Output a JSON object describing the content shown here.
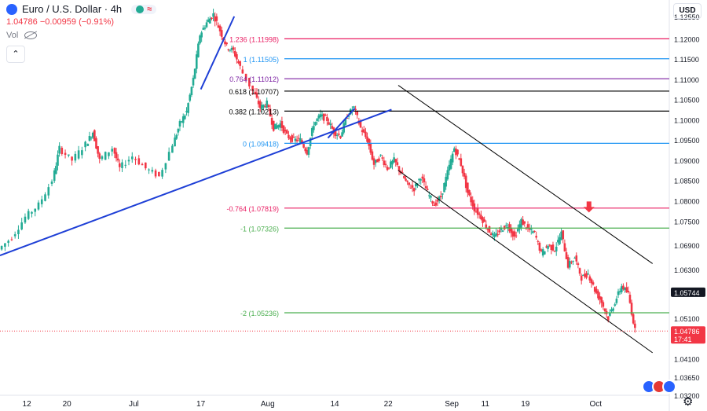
{
  "header": {
    "title": "Euro / U.S. Dollar · 4h",
    "open": "1.04786",
    "change": "−0.00959 (−0.91%)",
    "vol_label": "Vol"
  },
  "toolbar": {
    "currency": "USD",
    "collapse_symbol": "⌃"
  },
  "chart_data": {
    "type": "candlestick",
    "instrument": "EURUSD",
    "timeframe": "4h",
    "y_range": [
      1.032,
      1.128
    ],
    "y_ticks": [
      "1.12550",
      "1.12000",
      "1.11500",
      "1.11000",
      "1.10500",
      "1.10000",
      "1.09500",
      "1.09000",
      "1.08500",
      "1.08000",
      "1.07500",
      "1.06900",
      "1.06300",
      "1.05100",
      "1.04100",
      "1.03650",
      "1.03200"
    ],
    "y_tick_values": [
      1.1255,
      1.12,
      1.115,
      1.11,
      1.105,
      1.1,
      1.095,
      1.09,
      1.085,
      1.08,
      1.075,
      1.069,
      1.063,
      1.051,
      1.041,
      1.0365,
      1.032
    ],
    "x_ticks": [
      {
        "label": "12",
        "pos": 0.04
      },
      {
        "label": "20",
        "pos": 0.1
      },
      {
        "label": "Jul",
        "pos": 0.2
      },
      {
        "label": "17",
        "pos": 0.3
      },
      {
        "label": "Aug",
        "pos": 0.4
      },
      {
        "label": "14",
        "pos": 0.5
      },
      {
        "label": "22",
        "pos": 0.58
      },
      {
        "label": "Sep",
        "pos": 0.675
      },
      {
        "label": "11",
        "pos": 0.725
      },
      {
        "label": "19",
        "pos": 0.785
      },
      {
        "label": "Oct",
        "pos": 0.89
      }
    ],
    "path_points": [
      [
        0.0,
        1.068
      ],
      [
        0.02,
        1.071
      ],
      [
        0.04,
        1.076
      ],
      [
        0.06,
        1.079
      ],
      [
        0.08,
        1.085
      ],
      [
        0.09,
        1.093
      ],
      [
        0.11,
        1.09
      ],
      [
        0.13,
        1.094
      ],
      [
        0.14,
        1.097
      ],
      [
        0.15,
        1.09
      ],
      [
        0.17,
        1.093
      ],
      [
        0.18,
        1.088
      ],
      [
        0.2,
        1.091
      ],
      [
        0.22,
        1.088
      ],
      [
        0.24,
        1.086
      ],
      [
        0.26,
        1.094
      ],
      [
        0.27,
        1.099
      ],
      [
        0.28,
        1.102
      ],
      [
        0.29,
        1.11
      ],
      [
        0.3,
        1.121
      ],
      [
        0.31,
        1.124
      ],
      [
        0.32,
        1.126
      ],
      [
        0.33,
        1.122
      ],
      [
        0.34,
        1.118
      ],
      [
        0.35,
        1.117
      ],
      [
        0.36,
        1.113
      ],
      [
        0.38,
        1.107
      ],
      [
        0.39,
        1.103
      ],
      [
        0.4,
        1.104
      ],
      [
        0.41,
        1.098
      ],
      [
        0.42,
        1.099
      ],
      [
        0.43,
        1.096
      ],
      [
        0.44,
        1.095
      ],
      [
        0.45,
        1.095
      ],
      [
        0.46,
        1.092
      ],
      [
        0.47,
        1.099
      ],
      [
        0.48,
        1.101
      ],
      [
        0.49,
        1.1
      ],
      [
        0.5,
        1.097
      ],
      [
        0.51,
        1.096
      ],
      [
        0.52,
        1.101
      ],
      [
        0.53,
        1.103
      ],
      [
        0.54,
        1.098
      ],
      [
        0.55,
        1.095
      ],
      [
        0.56,
        1.089
      ],
      [
        0.57,
        1.091
      ],
      [
        0.58,
        1.088
      ],
      [
        0.59,
        1.09
      ],
      [
        0.6,
        1.087
      ],
      [
        0.61,
        1.084
      ],
      [
        0.62,
        1.083
      ],
      [
        0.63,
        1.086
      ],
      [
        0.64,
        1.082
      ],
      [
        0.65,
        1.079
      ],
      [
        0.66,
        1.081
      ],
      [
        0.67,
        1.087
      ],
      [
        0.68,
        1.093
      ],
      [
        0.69,
        1.089
      ],
      [
        0.7,
        1.082
      ],
      [
        0.71,
        1.078
      ],
      [
        0.72,
        1.076
      ],
      [
        0.73,
        1.073
      ],
      [
        0.74,
        1.071
      ],
      [
        0.75,
        1.073
      ],
      [
        0.76,
        1.074
      ],
      [
        0.77,
        1.071
      ],
      [
        0.78,
        1.075
      ],
      [
        0.79,
        1.073
      ],
      [
        0.8,
        1.072
      ],
      [
        0.81,
        1.067
      ],
      [
        0.82,
        1.069
      ],
      [
        0.83,
        1.068
      ],
      [
        0.84,
        1.072
      ],
      [
        0.85,
        1.064
      ],
      [
        0.86,
        1.066
      ],
      [
        0.87,
        1.061
      ],
      [
        0.88,
        1.062
      ],
      [
        0.89,
        1.058
      ],
      [
        0.9,
        1.055
      ],
      [
        0.91,
        1.051
      ],
      [
        0.92,
        1.055
      ],
      [
        0.93,
        1.059
      ],
      [
        0.94,
        1.057
      ],
      [
        0.95,
        1.048
      ]
    ],
    "fib_levels": [
      {
        "label": "1.236 (1.11998)",
        "value": 1.11998,
        "color": "#e91e63"
      },
      {
        "label": "1 (1.11505)",
        "value": 1.11505,
        "color": "#2196f3"
      },
      {
        "label": "0.764 (1.11012)",
        "value": 1.11012,
        "color": "#7b1fa2"
      },
      {
        "label": "0.618 (1.10707)",
        "value": 1.10707,
        "color": "#000000"
      },
      {
        "label": "0.382 (1.10213)",
        "value": 1.10213,
        "color": "#000000"
      },
      {
        "label": "0 (1.09418)",
        "value": 1.09418,
        "color": "#2196f3"
      },
      {
        "label": "-0.764 (1.07819)",
        "value": 1.07819,
        "color": "#e91e63"
      },
      {
        "label": "-1 (1.07326)",
        "value": 1.07326,
        "color": "#4caf50"
      },
      {
        "label": "-2 (1.05236)",
        "value": 1.05236,
        "color": "#4caf50"
      }
    ],
    "price_labels": [
      {
        "text": "1.05744",
        "value": 1.05744,
        "style": "dark"
      },
      {
        "text": "1.04786",
        "value": 1.04786,
        "style": "red"
      }
    ],
    "countdown": "17:41",
    "current_price": 1.04786,
    "colors": {
      "up": "#22ab94",
      "down": "#f23645",
      "trend": "#1e3fd6",
      "channel": "#000000",
      "arrow": "#f23645"
    }
  }
}
